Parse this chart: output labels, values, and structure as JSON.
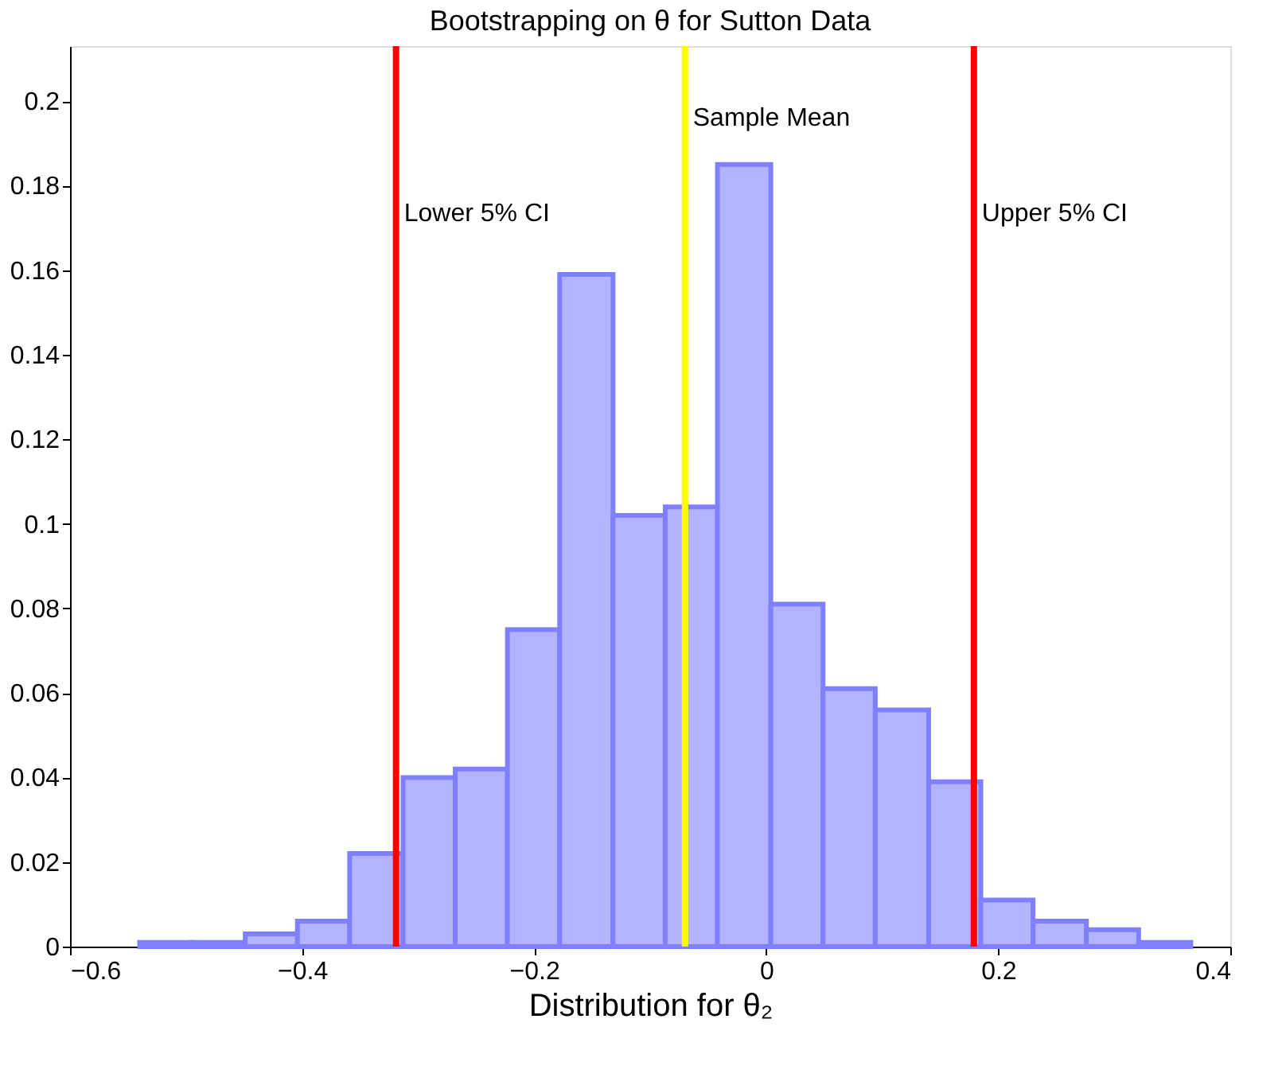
{
  "chart_data": {
    "type": "histogram",
    "title": "Bootstrapping on θ for Sutton Data",
    "xlabel": "Distribution for θ₂",
    "bins": [
      -0.54,
      -0.495,
      -0.449,
      -0.404,
      -0.359,
      -0.313,
      -0.268,
      -0.223,
      -0.178,
      -0.132,
      -0.087,
      -0.042,
      0.004,
      0.049,
      0.094,
      0.14,
      0.185,
      0.23,
      0.276,
      0.321,
      0.366
    ],
    "values": [
      0.001,
      0.001,
      0.003,
      0.006,
      0.022,
      0.04,
      0.042,
      0.075,
      0.159,
      0.102,
      0.104,
      0.185,
      0.081,
      0.061,
      0.056,
      0.039,
      0.011,
      0.006,
      0.004,
      0.001
    ],
    "color": "#b3b3ff",
    "xlim": [
      -0.6,
      0.4
    ],
    "xticks": [
      -0.6,
      -0.4,
      -0.2,
      0,
      0.2,
      0.4
    ],
    "ylim": [
      0,
      0.213
    ],
    "yticks": [
      0,
      0.02,
      0.04,
      0.06,
      0.08,
      0.1,
      0.12,
      0.14,
      0.16,
      0.18,
      0.2
    ],
    "grid": false,
    "ref_lines": [
      {
        "axis": "x",
        "value": -0.319,
        "label": "Lower 5% CI",
        "color": "#ff0000"
      },
      {
        "axis": "x",
        "value": -0.07,
        "label": "Sample Mean",
        "color": "#ffff00"
      },
      {
        "axis": "x",
        "value": 0.179,
        "label": "Upper 5% CI",
        "color": "#ff0000"
      }
    ]
  }
}
